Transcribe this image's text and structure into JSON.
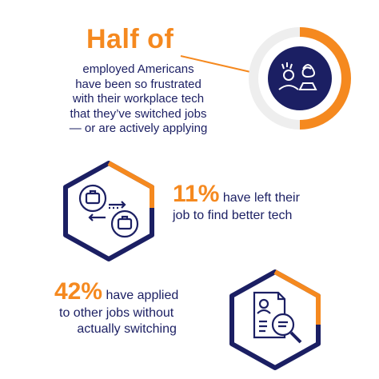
{
  "colors": {
    "navy": "#1b1f63",
    "orange": "#f5891f",
    "light": "#eeeeee",
    "white": "#ffffff"
  },
  "headline": "Half of",
  "intro_lines": [
    "employed Americans",
    "have been so frustrated",
    "with their workplace tech",
    "that they’ve switched jobs",
    "— or are actively applying"
  ],
  "stat_left_job": {
    "percent": "11%",
    "line1": "have left their",
    "line2": "job to find better tech"
  },
  "stat_applied": {
    "percent": "42%",
    "line1": "have applied",
    "line2": "to other jobs without",
    "line3": "actually switching"
  },
  "icons": [
    "frustrated-worker-icon",
    "job-switch-briefcases-icon",
    "resume-search-icon"
  ]
}
